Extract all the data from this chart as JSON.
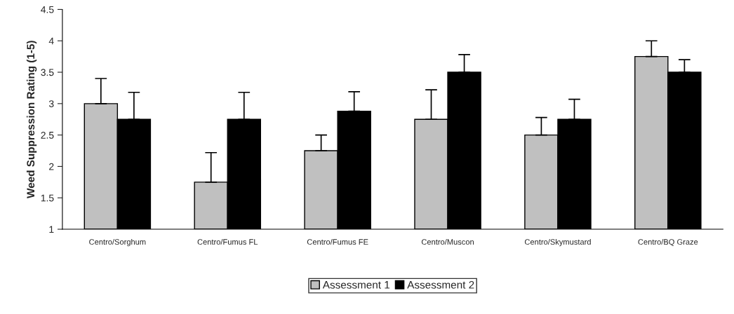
{
  "chart_data": {
    "type": "bar",
    "ylabel": "Weed Suppression Rating (1-5)",
    "categories": [
      "Centro/Sorghum",
      "Centro/Fumus FL",
      "Centro/Fumus FE",
      "Centro/Muscon",
      "Centro/Skymustard",
      "Centro/BQ Graze"
    ],
    "series": [
      {
        "name": "Assessment 1",
        "color": "#c0c0c0",
        "values": [
          3.0,
          1.75,
          2.25,
          2.75,
          2.5,
          3.75
        ],
        "errors": [
          [
            3.0,
            3.4
          ],
          [
            1.75,
            2.22
          ],
          [
            2.25,
            2.5
          ],
          [
            2.75,
            3.22
          ],
          [
            2.5,
            2.78
          ],
          [
            3.75,
            4.0
          ]
        ]
      },
      {
        "name": "Assessment 2",
        "color": "#000000",
        "values": [
          2.75,
          2.75,
          2.88,
          3.5,
          2.75,
          3.5
        ],
        "errors": [
          [
            2.75,
            3.18
          ],
          [
            2.75,
            3.18
          ],
          [
            2.88,
            3.19
          ],
          [
            3.5,
            3.78
          ],
          [
            2.75,
            3.07
          ],
          [
            3.5,
            3.7
          ]
        ]
      }
    ],
    "ylim": [
      1,
      4.5
    ],
    "yticks": [
      1,
      1.5,
      2,
      2.5,
      3,
      3.5,
      4,
      4.5
    ],
    "grid": false,
    "legend": "bottom"
  }
}
